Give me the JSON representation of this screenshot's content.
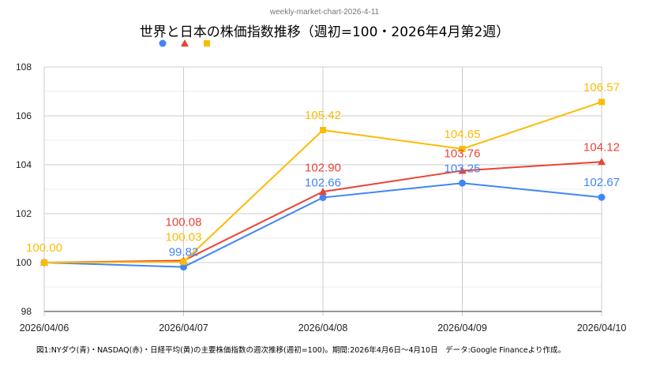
{
  "subtitle": "weekly-market-chart-2026-4-11",
  "caption": "図1:NYダウ(青)・NASDAQ(赤)・日経平均(黄)の主要株価指数の週次推移(週初=100)。期間:2026年4月6日〜4月10日　データ:Google Financeより作成。",
  "chart_data": {
    "type": "line",
    "title": "世界と日本の株価指数推移（週初=100・2026年4月第2週）",
    "categories": [
      "2026/04/06",
      "2026/04/07",
      "2026/04/08",
      "2026/04/09",
      "2026/04/10"
    ],
    "ylim": [
      98,
      108
    ],
    "yticks": [
      98,
      100,
      102,
      104,
      106,
      108
    ],
    "grid": true,
    "legend_position": "top-left",
    "series": [
      {
        "name": "NYダウ",
        "color": "#4285f4",
        "marker": "circle",
        "values": [
          100.0,
          99.82,
          102.66,
          103.25,
          102.67
        ],
        "labels": [
          "",
          "99.82",
          "102.66",
          "103.25",
          "102.67"
        ]
      },
      {
        "name": "NASDAQ",
        "color": "#ea4335",
        "marker": "triangle",
        "values": [
          100.0,
          100.08,
          102.9,
          103.76,
          104.12
        ],
        "labels": [
          "",
          "100.08",
          "102.90",
          "103.76",
          "104.12"
        ]
      },
      {
        "name": "日経平均",
        "color": "#fbbc04",
        "marker": "square",
        "values": [
          100.0,
          100.03,
          105.42,
          104.65,
          106.57
        ],
        "labels": [
          "100.00",
          "100.03",
          "105.42",
          "104.65",
          "106.57"
        ]
      }
    ]
  }
}
